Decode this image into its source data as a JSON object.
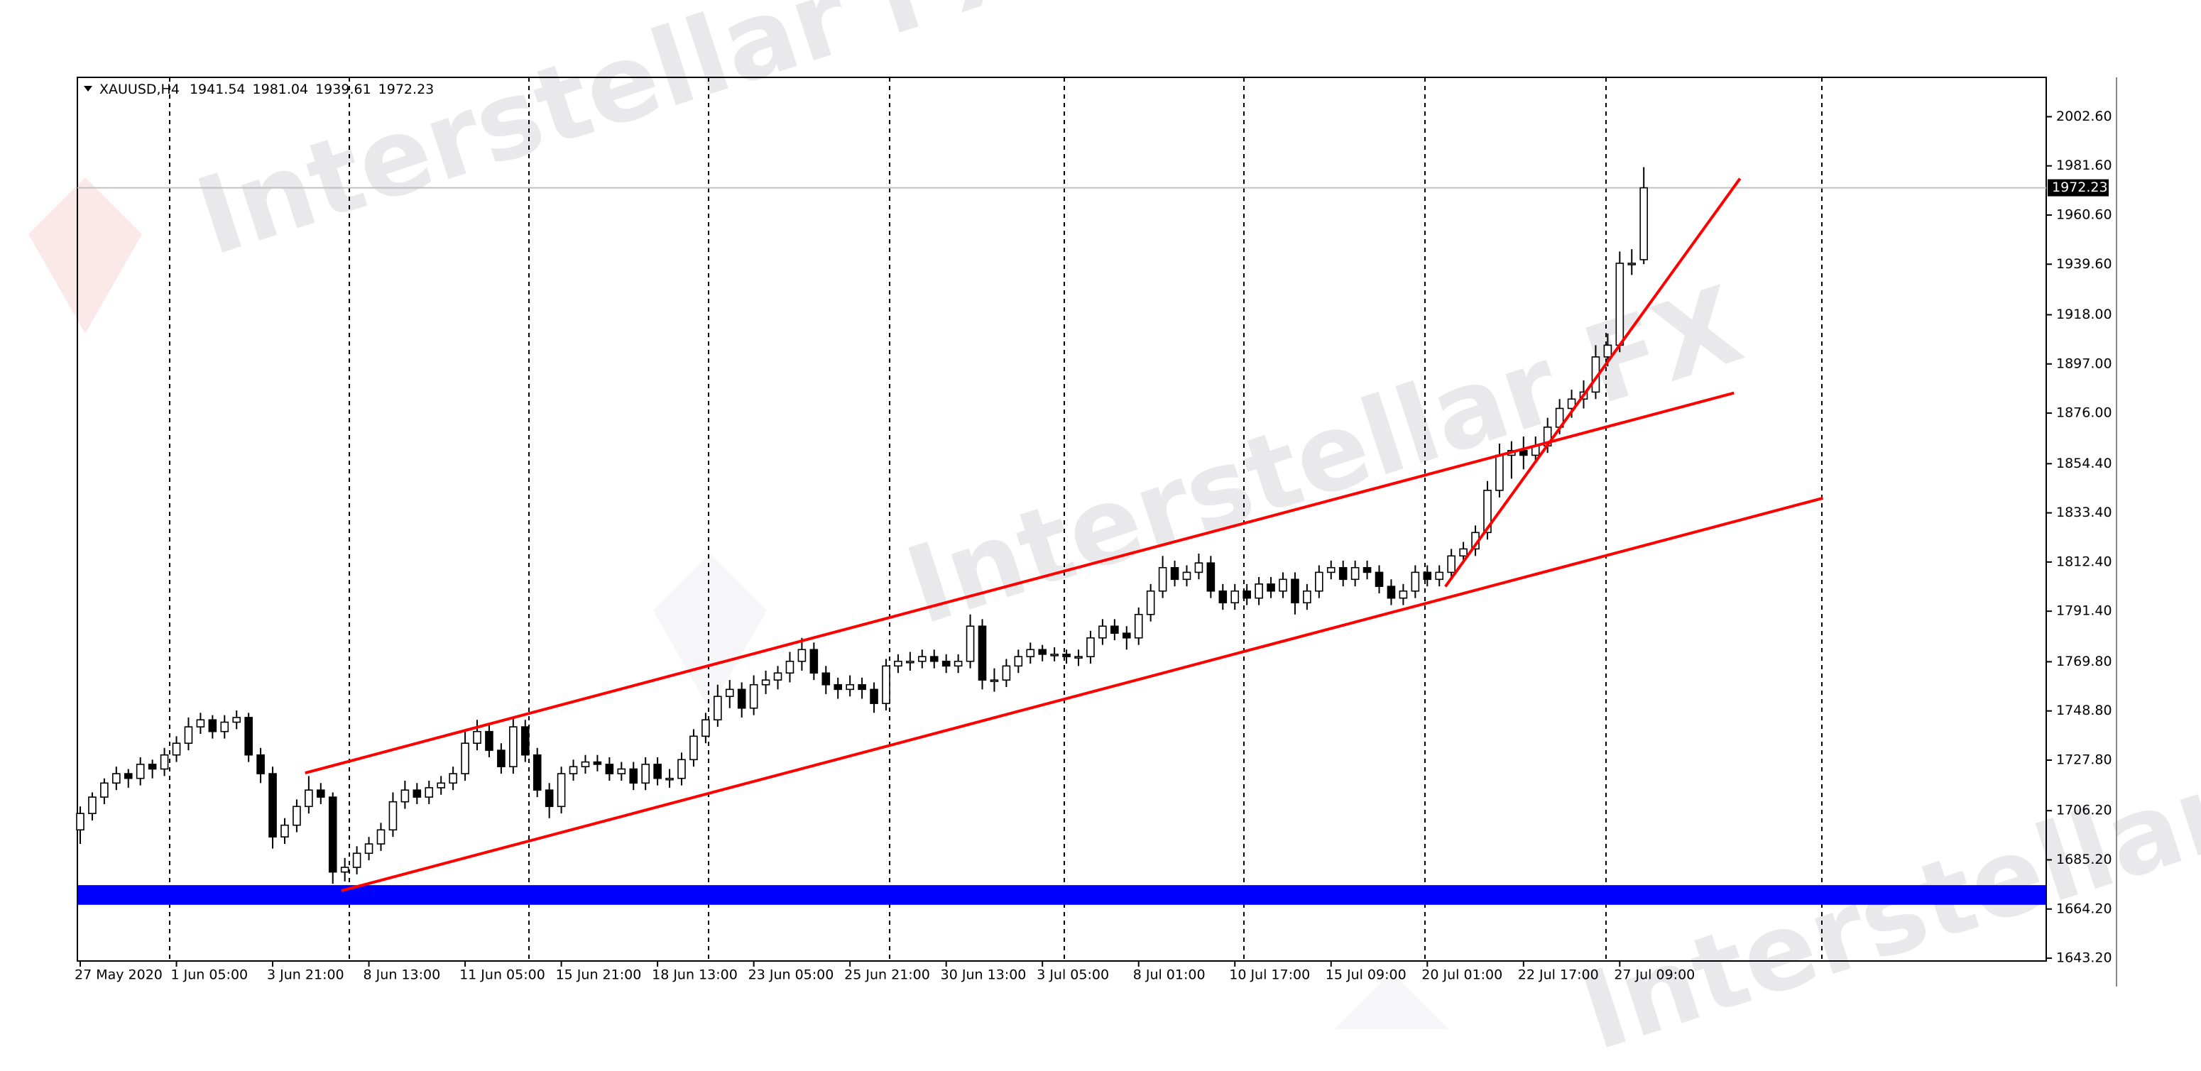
{
  "chart_data": {
    "type": "candlestick",
    "title": "XAUUSD,H4",
    "watermark": "Interstellar FX",
    "categories": [
      "27 May 2020",
      null,
      null,
      null,
      null,
      null,
      null,
      null,
      "1 Jun 05:00",
      null,
      null,
      null,
      null,
      null,
      null,
      null,
      "3 Jun 21:00",
      null,
      null,
      null,
      null,
      null,
      null,
      null,
      "8 Jun 13:00",
      null,
      null,
      null,
      null,
      null,
      null,
      null,
      "11 Jun 05:00",
      null,
      null,
      null,
      null,
      null,
      null,
      null,
      "15 Jun 21:00",
      null,
      null,
      null,
      null,
      null,
      null,
      null,
      "18 Jun 13:00",
      null,
      null,
      null,
      null,
      null,
      null,
      null,
      "23 Jun 05:00",
      null,
      null,
      null,
      null,
      null,
      null,
      null,
      "25 Jun 21:00",
      null,
      null,
      null,
      null,
      null,
      null,
      null,
      "30 Jun 13:00",
      null,
      null,
      null,
      null,
      null,
      null,
      null,
      "3 Jul 05:00",
      null,
      null,
      null,
      null,
      null,
      null,
      null,
      "8 Jul 01:00",
      null,
      null,
      null,
      null,
      null,
      null,
      null,
      "10 Jul 17:00",
      null,
      null,
      null,
      null,
      null,
      null,
      null,
      "15 Jul 09:00",
      null,
      null,
      null,
      null,
      null,
      null,
      null,
      "20 Jul 01:00",
      null,
      null,
      null,
      null,
      null,
      null,
      null,
      "22 Jul 17:00",
      null,
      null,
      null,
      null,
      null,
      null,
      null,
      "27 Jul 09:00",
      null,
      null
    ],
    "open": [
      1698,
      1705,
      1712,
      1718,
      1722,
      1720,
      1726,
      1724,
      1730,
      1735,
      1742,
      1745,
      1740,
      1744,
      1746,
      1730,
      1722,
      1695,
      1700,
      1708,
      1715,
      1712,
      1680,
      1682,
      1688,
      1692,
      1698,
      1710,
      1715,
      1712,
      1716,
      1718,
      1722,
      1735,
      1740,
      1732,
      1725,
      1742,
      1730,
      1715,
      1708,
      1722,
      1725,
      1727,
      1726,
      1722,
      1724,
      1718,
      1726,
      1720,
      1720,
      1728,
      1738,
      1745,
      1755,
      1758,
      1750,
      1760,
      1762,
      1765,
      1770,
      1775,
      1765,
      1760,
      1758,
      1760,
      1758,
      1752,
      1768,
      1770,
      1770,
      1772,
      1770,
      1768,
      1770,
      1785,
      1762,
      1762,
      1768,
      1772,
      1775,
      1773,
      1773,
      1772,
      1772,
      1780,
      1785,
      1782,
      1780,
      1790,
      1800,
      1810,
      1805,
      1808,
      1812,
      1800,
      1795,
      1800,
      1797,
      1803,
      1800,
      1805,
      1795,
      1800,
      1808,
      1810,
      1805,
      1810,
      1808,
      1802,
      1797,
      1800,
      1808,
      1805,
      1808,
      1815,
      1818,
      1825,
      1843,
      1858,
      1860,
      1858,
      1862,
      1870,
      1878,
      1882,
      1885,
      1900,
      1905,
      1940,
      1941.54
    ],
    "high": [
      1708,
      1714,
      1720,
      1725,
      1724,
      1729,
      1728,
      1733,
      1738,
      1746,
      1748,
      1747,
      1747,
      1749,
      1748,
      1733,
      1725,
      1703,
      1711,
      1721,
      1718,
      1714,
      1686,
      1691,
      1695,
      1701,
      1714,
      1719,
      1718,
      1719,
      1721,
      1725,
      1740,
      1745,
      1743,
      1735,
      1746,
      1745,
      1733,
      1718,
      1725,
      1728,
      1730,
      1730,
      1729,
      1727,
      1727,
      1729,
      1729,
      1724,
      1731,
      1741,
      1748,
      1760,
      1762,
      1761,
      1764,
      1766,
      1768,
      1774,
      1780,
      1778,
      1768,
      1763,
      1764,
      1763,
      1761,
      1771,
      1773,
      1774,
      1775,
      1775,
      1773,
      1773,
      1790,
      1788,
      1767,
      1771,
      1775,
      1778,
      1777,
      1776,
      1775,
      1775,
      1783,
      1788,
      1788,
      1785,
      1793,
      1803,
      1815,
      1813,
      1811,
      1816,
      1815,
      1803,
      1803,
      1803,
      1806,
      1806,
      1808,
      1808,
      1803,
      1811,
      1813,
      1813,
      1813,
      1813,
      1811,
      1805,
      1803,
      1811,
      1811,
      1811,
      1818,
      1821,
      1828,
      1847,
      1863,
      1864,
      1866,
      1866,
      1874,
      1882,
      1886,
      1890,
      1905,
      1910,
      1945,
      1946,
      1981.04
    ],
    "low": [
      1692,
      1702,
      1709,
      1715,
      1716,
      1717,
      1720,
      1721,
      1727,
      1732,
      1739,
      1737,
      1737,
      1741,
      1727,
      1718,
      1690,
      1692,
      1697,
      1705,
      1709,
      1675,
      1676,
      1679,
      1685,
      1689,
      1695,
      1707,
      1709,
      1709,
      1713,
      1715,
      1719,
      1732,
      1729,
      1722,
      1722,
      1727,
      1712,
      1703,
      1705,
      1719,
      1722,
      1723,
      1719,
      1719,
      1715,
      1715,
      1717,
      1716,
      1717,
      1725,
      1735,
      1742,
      1750,
      1746,
      1747,
      1756,
      1758,
      1761,
      1766,
      1762,
      1756,
      1754,
      1755,
      1754,
      1748,
      1749,
      1765,
      1766,
      1767,
      1767,
      1765,
      1765,
      1767,
      1758,
      1757,
      1759,
      1765,
      1769,
      1770,
      1770,
      1769,
      1768,
      1769,
      1777,
      1779,
      1775,
      1777,
      1787,
      1797,
      1802,
      1802,
      1805,
      1797,
      1792,
      1792,
      1794,
      1794,
      1797,
      1797,
      1790,
      1792,
      1797,
      1805,
      1802,
      1802,
      1805,
      1799,
      1794,
      1794,
      1797,
      1802,
      1802,
      1805,
      1812,
      1815,
      1822,
      1840,
      1848,
      1852,
      1855,
      1859,
      1867,
      1874,
      1878,
      1882,
      1896,
      1902,
      1935,
      1939.61
    ],
    "close": [
      1705,
      1712,
      1718,
      1722,
      1720,
      1726,
      1724,
      1730,
      1735,
      1742,
      1745,
      1740,
      1744,
      1746,
      1730,
      1722,
      1695,
      1700,
      1708,
      1715,
      1712,
      1680,
      1682,
      1688,
      1692,
      1698,
      1710,
      1715,
      1712,
      1716,
      1718,
      1722,
      1735,
      1740,
      1732,
      1725,
      1742,
      1730,
      1715,
      1708,
      1722,
      1725,
      1727,
      1726,
      1722,
      1724,
      1718,
      1726,
      1720,
      1720,
      1728,
      1738,
      1745,
      1755,
      1758,
      1750,
      1760,
      1762,
      1765,
      1770,
      1775,
      1765,
      1760,
      1758,
      1760,
      1758,
      1752,
      1768,
      1770,
      1770,
      1772,
      1770,
      1768,
      1770,
      1785,
      1762,
      1762,
      1768,
      1772,
      1775,
      1773,
      1773,
      1772,
      1772,
      1780,
      1785,
      1782,
      1780,
      1790,
      1800,
      1810,
      1805,
      1808,
      1812,
      1800,
      1795,
      1800,
      1797,
      1803,
      1800,
      1805,
      1795,
      1800,
      1808,
      1810,
      1805,
      1810,
      1808,
      1802,
      1797,
      1800,
      1808,
      1805,
      1808,
      1815,
      1818,
      1825,
      1843,
      1858,
      1860,
      1858,
      1862,
      1870,
      1878,
      1882,
      1885,
      1900,
      1905,
      1940,
      1940,
      1972.23
    ],
    "up_color": "#ffffff",
    "down_color": "#000000",
    "line_color": "#000000",
    "ylim": [
      1642,
      2019.4
    ],
    "yticks": [
      {
        "value": 1643.2,
        "label": "1643.20"
      },
      {
        "value": 1664.2,
        "label": "1664.20"
      },
      {
        "value": 1685.2,
        "label": "1685.20"
      },
      {
        "value": 1706.2,
        "label": "1706.20"
      },
      {
        "value": 1727.8,
        "label": "1727.80"
      },
      {
        "value": 1748.8,
        "label": "1748.80"
      },
      {
        "value": 1769.8,
        "label": "1769.80"
      },
      {
        "value": 1791.4,
        "label": "1791.40"
      },
      {
        "value": 1812.4,
        "label": "1812.40"
      },
      {
        "value": 1833.4,
        "label": "1833.40"
      },
      {
        "value": 1854.4,
        "label": "1854.40"
      },
      {
        "value": 1876,
        "label": "1876.00"
      },
      {
        "value": 1897,
        "label": "1897.00"
      },
      {
        "value": 1918,
        "label": "1918.00"
      },
      {
        "value": 1939.6,
        "label": "1939.60"
      },
      {
        "value": 1960.6,
        "label": "1960.60"
      },
      {
        "value": 1981.6,
        "label": "1981.60"
      },
      {
        "value": 2002.6,
        "label": "2002.60"
      }
    ],
    "trendlines": [
      {
        "x0": 18.7,
        "y0": 1722.3,
        "x1": 137.5,
        "y1": 1884.6,
        "color": "#ff0000"
      },
      {
        "x0": 21.7,
        "y0": 1672.0,
        "x1": 144.9,
        "y1": 1839.7,
        "color": "#ff0000"
      },
      {
        "x0": 113.5,
        "y0": 1801.9,
        "x1": 138.0,
        "y1": 1976.2,
        "color": "#ff0000"
      }
    ],
    "zone": {
      "low": 1666.0,
      "high": 1674.4,
      "color": "#0000ff"
    }
  }
}
